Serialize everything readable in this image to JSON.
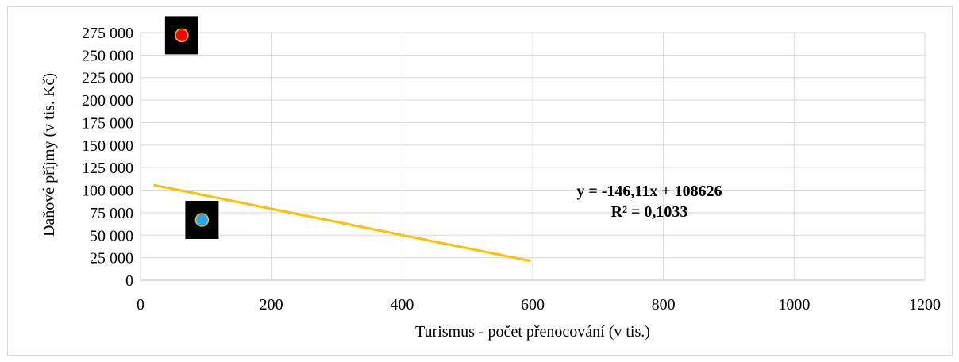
{
  "chart_data": {
    "type": "scatter",
    "xlabel": "Turismus - počet přenocování (v tis.)",
    "ylabel": "Daňové příjmy (v tis. Kč)",
    "xlim": [
      0,
      1200
    ],
    "ylim": [
      0,
      275000
    ],
    "x_ticks": [
      "0",
      "200",
      "400",
      "600",
      "800",
      "1000",
      "1200"
    ],
    "y_ticks": [
      "0",
      "25 000",
      "50 000",
      "75 000",
      "100 000",
      "125 000",
      "150 000",
      "175 000",
      "200 000",
      "225 000",
      "250 000",
      "275 000"
    ],
    "grid": true,
    "points": [
      {
        "x": 63,
        "y": 272000,
        "color": "#ff0000",
        "marker_bg": "#000000",
        "border": "#ffc000"
      },
      {
        "x": 94,
        "y": 67000,
        "color": "#2ea3f2",
        "marker_bg": "#000000",
        "border": "#ffc000"
      }
    ],
    "trendline": {
      "x_start": 20,
      "x_end": 597,
      "slope": -146.11,
      "intercept": 108626,
      "color": "#ffc000"
    },
    "annotation": {
      "equation": "y = -146,11x + 108626",
      "r_squared": "R² = 0,1033"
    }
  }
}
